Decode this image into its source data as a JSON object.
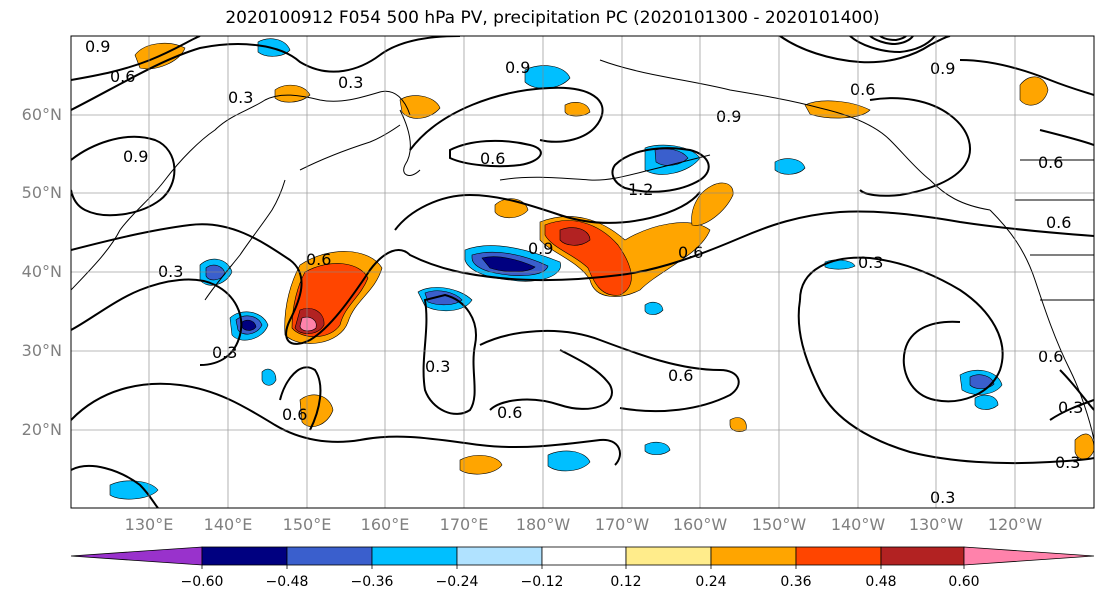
{
  "title": "2020100912 F054 500 hPa PV, precipitation PC (2020101300 - 2020101400)",
  "map": {
    "lat_labels": [
      "60°N",
      "50°N",
      "40°N",
      "30°N",
      "20°N"
    ],
    "lon_labels": [
      "130°E",
      "140°E",
      "150°E",
      "160°E",
      "170°E",
      "180°W",
      "170°W",
      "160°W",
      "150°W",
      "140°W",
      "130°W",
      "120°W"
    ],
    "contour_labels": [
      "0.9",
      "0.6",
      "0.3",
      "0.3",
      "0.9",
      "0.9",
      "0.6",
      "0.9",
      "0.6",
      "0.9",
      "0.6",
      "1.2",
      "0.9",
      "0.6",
      "0.3",
      "0.6",
      "0.3",
      "0.3",
      "0.6",
      "0.6",
      "0.6",
      "0.3",
      "0.3",
      "0.3",
      "0.6",
      "0.3",
      "0.6"
    ]
  },
  "colorbar": {
    "ticks": [
      "−0.60",
      "−0.48",
      "−0.36",
      "−0.24",
      "−0.12",
      "0.12",
      "0.24",
      "0.36",
      "0.48",
      "0.60"
    ],
    "colors": [
      "#9932cc",
      "#000080",
      "#3a5fcd",
      "#00bfff",
      "#b0e2ff",
      "#ffffff",
      "#ffec8b",
      "#ffa500",
      "#ff4500",
      "#b22222",
      "#ff82ab"
    ]
  }
}
